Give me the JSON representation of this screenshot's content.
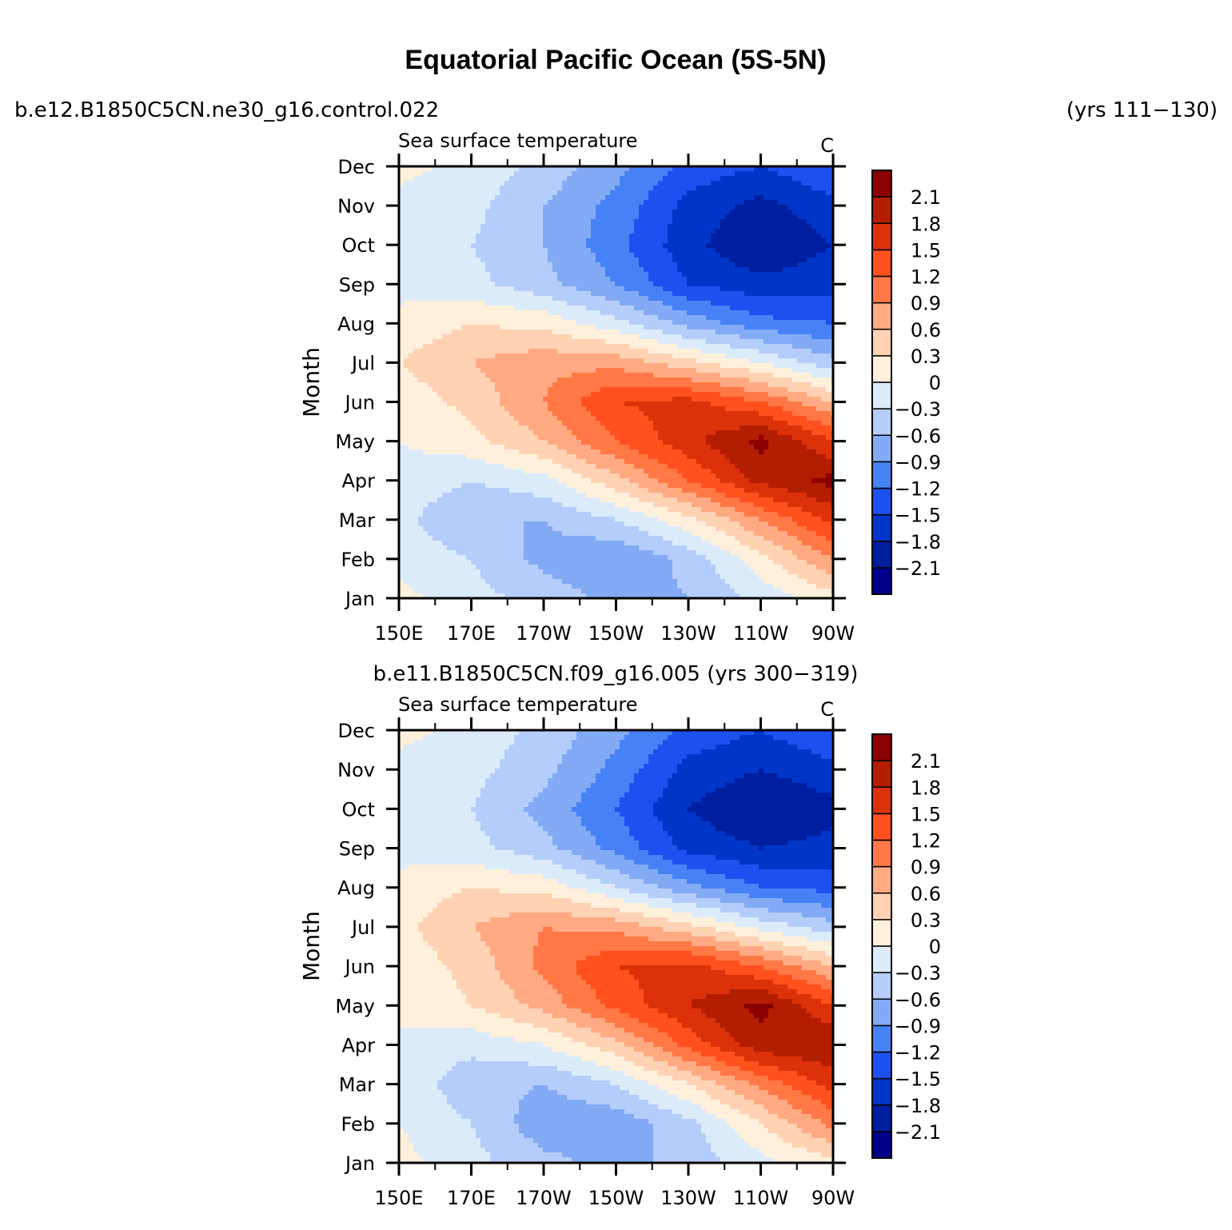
{
  "figure": {
    "title": "Equatorial Pacific Ocean (5S-5N)",
    "case_left": "b.e12.B1850C5CN.ne30_g16.control.022",
    "case_right": "(yrs 111−130)",
    "case2_label": "b.e11.B1850C5CN.f09_g16.005 (yrs 300−319)"
  },
  "chart_data": [
    {
      "type": "heatmap",
      "title": "Sea surface temperature",
      "units": "C",
      "ylabel": "Month",
      "xlabel": "",
      "x": [
        "150E",
        "170E",
        "170W",
        "150W",
        "130W",
        "110W",
        "90W"
      ],
      "y": [
        "Jan",
        "Feb",
        "Mar",
        "Apr",
        "May",
        "Jun",
        "Jul",
        "Aug",
        "Sep",
        "Oct",
        "Nov",
        "Dec"
      ],
      "legend_position": "right",
      "levels": [
        -2.1,
        -1.8,
        -1.5,
        -1.2,
        -0.9,
        -0.6,
        -0.3,
        0,
        0.3,
        0.6,
        0.9,
        1.2,
        1.5,
        1.8,
        2.1
      ],
      "level_labels": [
        "2.1",
        "1.8",
        "1.5",
        "1.2",
        "0.9",
        "0.6",
        "0.3",
        "0",
        "−0.3",
        "−0.6",
        "−0.9",
        "−1.2",
        "−1.5",
        "−1.8",
        "−2.1"
      ],
      "values": [
        [
          0.1,
          -0.2,
          -0.4,
          -0.7,
          -0.6,
          -0.2,
          0.2
        ],
        [
          -0.1,
          -0.3,
          -0.7,
          -0.9,
          -0.5,
          0.2,
          0.9
        ],
        [
          -0.2,
          -0.6,
          -0.6,
          -0.3,
          0.2,
          0.9,
          1.6
        ],
        [
          -0.1,
          -0.3,
          -0.1,
          0.5,
          1.2,
          1.9,
          2.2
        ],
        [
          0.0,
          0.2,
          0.6,
          1.2,
          1.7,
          2.2,
          1.5
        ],
        [
          0.1,
          0.4,
          0.9,
          1.5,
          1.6,
          1.2,
          0.6
        ],
        [
          0.3,
          0.6,
          0.8,
          0.8,
          0.4,
          0.0,
          -0.5
        ],
        [
          0.1,
          0.3,
          0.2,
          -0.2,
          -0.7,
          -1.1,
          -1.2
        ],
        [
          -0.1,
          -0.2,
          -0.5,
          -0.9,
          -1.5,
          -1.7,
          -1.6
        ],
        [
          -0.2,
          -0.3,
          -0.6,
          -1.1,
          -1.7,
          -2.1,
          -1.8
        ],
        [
          -0.1,
          -0.2,
          -0.6,
          -1.0,
          -1.6,
          -1.9,
          -1.6
        ],
        [
          0.1,
          -0.1,
          -0.4,
          -0.8,
          -1.3,
          -1.5,
          -1.2
        ]
      ]
    },
    {
      "type": "heatmap",
      "title": "Sea surface temperature",
      "units": "C",
      "ylabel": "Month",
      "xlabel": "",
      "x": [
        "150E",
        "170E",
        "170W",
        "150W",
        "130W",
        "110W",
        "90W"
      ],
      "y": [
        "Jan",
        "Feb",
        "Mar",
        "Apr",
        "May",
        "Jun",
        "Jul",
        "Aug",
        "Sep",
        "Oct",
        "Nov",
        "Dec"
      ],
      "legend_position": "right",
      "levels": [
        -2.1,
        -1.8,
        -1.5,
        -1.2,
        -0.9,
        -0.6,
        -0.3,
        0,
        0.3,
        0.6,
        0.9,
        1.2,
        1.5,
        1.8,
        2.1
      ],
      "level_labels": [
        "2.1",
        "1.8",
        "1.5",
        "1.2",
        "0.9",
        "0.6",
        "0.3",
        "0",
        "−0.3",
        "−0.6",
        "−0.9",
        "−1.2",
        "−1.5",
        "−1.8",
        "−2.1"
      ],
      "values": [
        [
          0.1,
          -0.2,
          -0.5,
          -0.7,
          -0.5,
          -0.1,
          0.2
        ],
        [
          0.0,
          -0.3,
          -0.8,
          -0.8,
          -0.4,
          0.3,
          1.0
        ],
        [
          -0.1,
          -0.5,
          -0.6,
          -0.3,
          0.3,
          1.0,
          1.6
        ],
        [
          -0.1,
          -0.2,
          0.0,
          0.5,
          1.3,
          2.0,
          2.1
        ],
        [
          0.1,
          0.3,
          0.7,
          1.3,
          1.8,
          2.2,
          1.5
        ],
        [
          0.1,
          0.4,
          1.0,
          1.5,
          1.6,
          1.2,
          0.6
        ],
        [
          0.2,
          0.6,
          0.9,
          0.8,
          0.4,
          -0.1,
          -0.5
        ],
        [
          0.1,
          0.3,
          0.2,
          -0.3,
          -0.8,
          -1.2,
          -1.3
        ],
        [
          -0.1,
          -0.2,
          -0.5,
          -1.0,
          -1.6,
          -1.8,
          -1.7
        ],
        [
          -0.2,
          -0.3,
          -0.7,
          -1.2,
          -1.8,
          -2.1,
          -1.9
        ],
        [
          -0.1,
          -0.2,
          -0.5,
          -1.0,
          -1.6,
          -1.8,
          -1.6
        ],
        [
          0.1,
          -0.1,
          -0.4,
          -0.8,
          -1.3,
          -1.5,
          -1.2
        ]
      ]
    }
  ],
  "colors": [
    "#00008b",
    "#001ea0",
    "#0036c8",
    "#1e50f0",
    "#4682f5",
    "#82aaf5",
    "#b4cdfa",
    "#dcebfa",
    "#fff0dc",
    "#ffd2b4",
    "#ffaa82",
    "#ff7846",
    "#ff501e",
    "#dc320a",
    "#b41e00",
    "#8b0000"
  ]
}
